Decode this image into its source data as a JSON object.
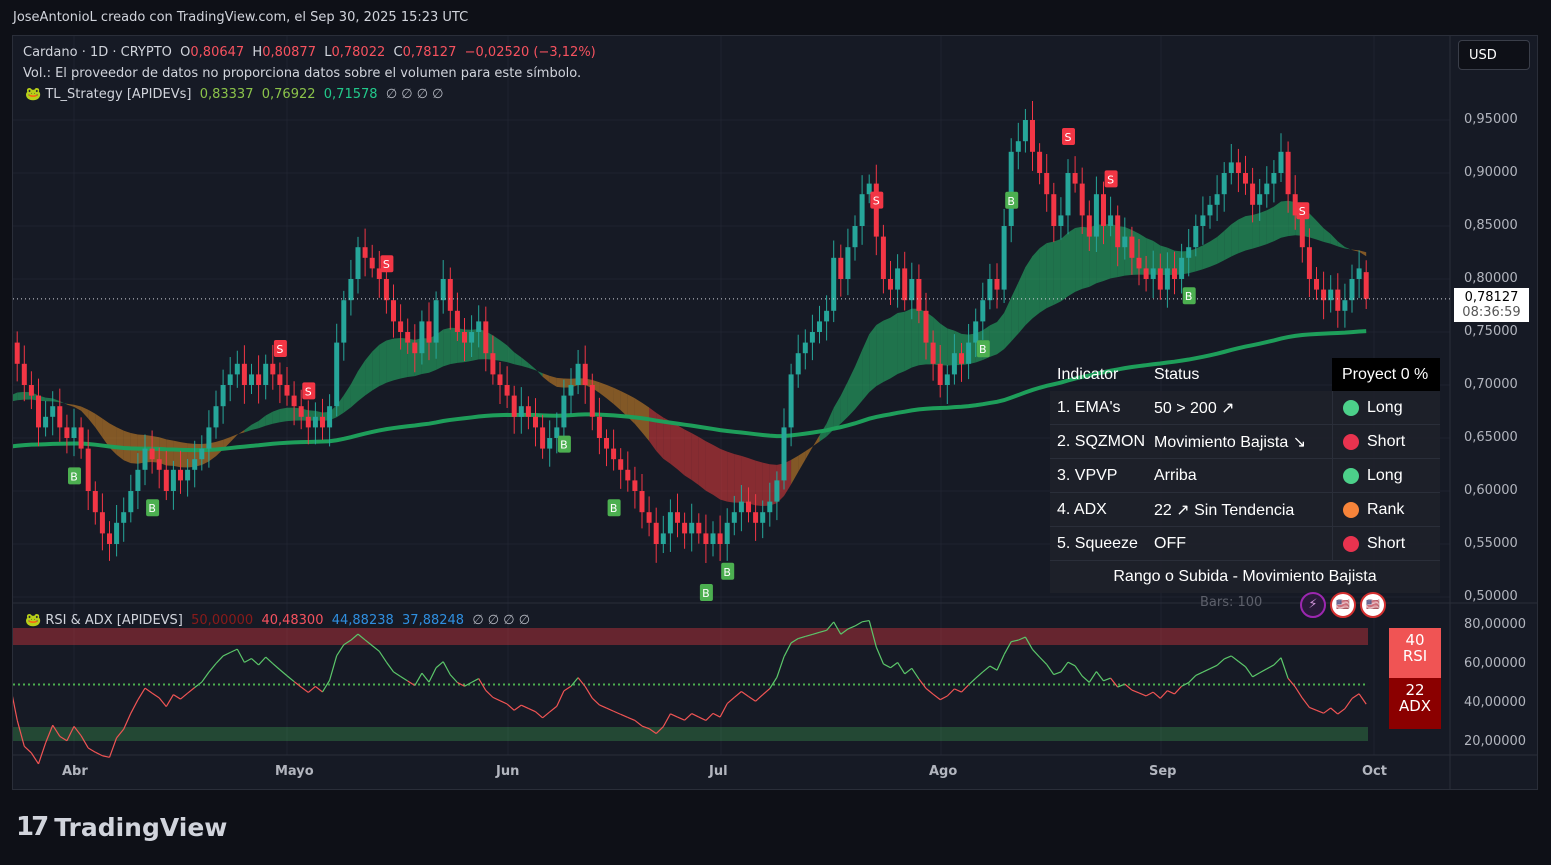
{
  "credit": "JoseAntonioL creado con TradingView.com, el Sep 30, 2025 15:23 UTC",
  "legend": {
    "symbol": "Cardano · 1D · CRYPTO",
    "o_label": "O",
    "open": "0,80647",
    "h_label": "H",
    "high": "0,80877",
    "l_label": "L",
    "low": "0,78022",
    "c_label": "C",
    "close": "0,78127",
    "change": "−0,02520 (−3,12%)",
    "volume_note": "Vol.: El proveedor de datos no proporciona datos sobre el volumen para este símbolo.",
    "strategy_name": "TL_Strategy [APIDEVs]",
    "strategy_values": [
      "0,83337",
      "0,76922",
      "0,71578"
    ],
    "strategy_empty": "∅ ∅ ∅ ∅"
  },
  "currency_button": "USD",
  "last_price": {
    "value": "0,78127",
    "countdown": "08:36:59"
  },
  "table": {
    "headers": [
      "Indicator",
      "Status",
      "Proyect 0 %"
    ],
    "rows": [
      {
        "indicator": "1. EMA's",
        "status": "50 > 200 ↗",
        "signal": "Long",
        "color": "#4cd08a"
      },
      {
        "indicator": "2. SQZMON",
        "status": "Movimiento Bajista ↘",
        "signal": "Short",
        "color": "#e8334f"
      },
      {
        "indicator": "3. VPVP",
        "status": "Arriba",
        "signal": "Long",
        "color": "#4cd08a"
      },
      {
        "indicator": "4. ADX",
        "status": "22 ↗ Sin Tendencia",
        "signal": "Rank",
        "color": "#f7843a"
      },
      {
        "indicator": "5. Squeeze",
        "status": "OFF",
        "signal": "Short",
        "color": "#e8334f"
      }
    ],
    "footer": "Rango o Subida - Movimiento Bajista",
    "bars": "Bars: 100"
  },
  "rsi_legend": {
    "name": "RSI & ADX [APIDEVS]",
    "values": [
      "50,00000",
      "40,48300",
      "44,88238",
      "37,88248"
    ],
    "empty": "∅ ∅ ∅ ∅"
  },
  "badges": {
    "rsi_value": "40",
    "rsi_label": "RSI",
    "adx_value": "22",
    "adx_label": "ADX"
  },
  "brand": "TradingView",
  "colors": {
    "up": "#26a69a",
    "down": "#f23645",
    "ema200": "#1e9e5a",
    "buy": "#4caf50",
    "sell": "#f23645"
  },
  "chart_data": {
    "type": "candlestick",
    "title": "Cardano · 1D · CRYPTO",
    "start_date": "2025-03-22",
    "closes": [
      0.73,
      0.74,
      0.72,
      0.7,
      0.69,
      0.66,
      0.67,
      0.68,
      0.66,
      0.65,
      0.66,
      0.64,
      0.6,
      0.58,
      0.56,
      0.55,
      0.57,
      0.58,
      0.6,
      0.62,
      0.64,
      0.63,
      0.62,
      0.6,
      0.62,
      0.61,
      0.62,
      0.63,
      0.64,
      0.66,
      0.68,
      0.7,
      0.71,
      0.72,
      0.7,
      0.71,
      0.7,
      0.72,
      0.71,
      0.7,
      0.69,
      0.68,
      0.67,
      0.66,
      0.67,
      0.66,
      0.68,
      0.74,
      0.78,
      0.8,
      0.83,
      0.82,
      0.81,
      0.8,
      0.78,
      0.76,
      0.75,
      0.74,
      0.73,
      0.76,
      0.74,
      0.78,
      0.8,
      0.77,
      0.75,
      0.74,
      0.75,
      0.76,
      0.73,
      0.71,
      0.7,
      0.69,
      0.67,
      0.68,
      0.67,
      0.66,
      0.64,
      0.65,
      0.66,
      0.69,
      0.7,
      0.72,
      0.7,
      0.67,
      0.65,
      0.64,
      0.63,
      0.62,
      0.61,
      0.6,
      0.58,
      0.57,
      0.55,
      0.56,
      0.58,
      0.57,
      0.56,
      0.57,
      0.56,
      0.55,
      0.56,
      0.55,
      0.57,
      0.58,
      0.59,
      0.58,
      0.57,
      0.58,
      0.59,
      0.61,
      0.66,
      0.71,
      0.73,
      0.74,
      0.75,
      0.76,
      0.77,
      0.82,
      0.8,
      0.83,
      0.85,
      0.88,
      0.89,
      0.84,
      0.8,
      0.79,
      0.81,
      0.78,
      0.8,
      0.77,
      0.74,
      0.72,
      0.7,
      0.71,
      0.73,
      0.72,
      0.74,
      0.76,
      0.78,
      0.8,
      0.79,
      0.85,
      0.92,
      0.93,
      0.95,
      0.92,
      0.9,
      0.88,
      0.85,
      0.86,
      0.9,
      0.89,
      0.86,
      0.84,
      0.88,
      0.85,
      0.86,
      0.83,
      0.84,
      0.82,
      0.81,
      0.8,
      0.81,
      0.79,
      0.81,
      0.8,
      0.82,
      0.83,
      0.85,
      0.86,
      0.87,
      0.88,
      0.9,
      0.91,
      0.9,
      0.89,
      0.87,
      0.88,
      0.89,
      0.9,
      0.92,
      0.88,
      0.86,
      0.83,
      0.8,
      0.79,
      0.78,
      0.79,
      0.77,
      0.78,
      0.8,
      0.81,
      0.78127
    ],
    "signals": [
      {
        "date": "04-01",
        "type": "B"
      },
      {
        "date": "04-12",
        "type": "B"
      },
      {
        "date": "04-30",
        "type": "S"
      },
      {
        "date": "05-04",
        "type": "S"
      },
      {
        "date": "05-15",
        "type": "S"
      },
      {
        "date": "06-09",
        "type": "B"
      },
      {
        "date": "06-16",
        "type": "B"
      },
      {
        "date": "06-29",
        "type": "B"
      },
      {
        "date": "07-02",
        "type": "B"
      },
      {
        "date": "07-23",
        "type": "S"
      },
      {
        "date": "08-07",
        "type": "B"
      },
      {
        "date": "08-11",
        "type": "B"
      },
      {
        "date": "08-19",
        "type": "S"
      },
      {
        "date": "08-25",
        "type": "S"
      },
      {
        "date": "09-05",
        "type": "B"
      },
      {
        "date": "09-21",
        "type": "S"
      }
    ],
    "y_ticks": [
      "0,95000",
      "0,90000",
      "0,85000",
      "0,80000",
      "0,75000",
      "0,70000",
      "0,65000",
      "0,60000",
      "0,55000",
      "0,50000"
    ],
    "ylim": [
      0.5,
      0.95
    ],
    "x_ticks": [
      "Abr",
      "Mayo",
      "Jun",
      "Jul",
      "Ago",
      "Sep",
      "Oct"
    ],
    "rsi_ticks": [
      "80,00000",
      "60,00000",
      "40,00000",
      "20,00000"
    ],
    "rsi_ylim": [
      20,
      80
    ]
  }
}
